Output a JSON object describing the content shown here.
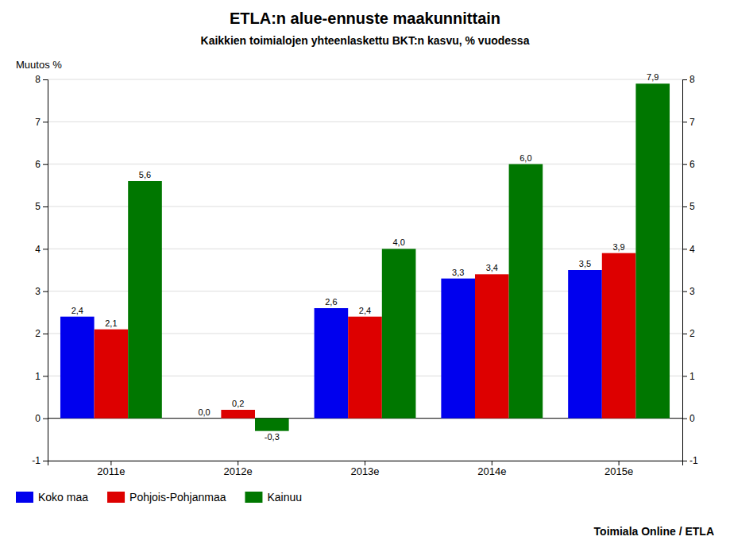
{
  "chart_data": {
    "type": "bar",
    "title": "ETLA:n alue-ennuste maakunnittain",
    "subtitle": "Kaikkien toimialojen yhteenlaskettu BKT:n kasvu, % vuodessa",
    "ylabel": "Muutos %",
    "categories": [
      "2011e",
      "2012e",
      "2013e",
      "2014e",
      "2015e"
    ],
    "series": [
      {
        "name": "Koko maa",
        "color": "#0000ee",
        "values": [
          2.4,
          0.0,
          2.6,
          3.3,
          3.5
        ],
        "value_labels": [
          "2,4",
          "0,0",
          "2,6",
          "3,3",
          "3,5"
        ]
      },
      {
        "name": "Pohjois-Pohjanmaa",
        "color": "#dd0000",
        "values": [
          2.1,
          0.2,
          2.4,
          3.4,
          3.9
        ],
        "value_labels": [
          "2,1",
          "0,2",
          "2,4",
          "3,4",
          "3,9"
        ]
      },
      {
        "name": "Kainuu",
        "color": "#007700",
        "values": [
          5.6,
          -0.3,
          4.0,
          6.0,
          7.9
        ],
        "value_labels": [
          "5,6",
          "-0,3",
          "4,0",
          "6,0",
          "7,9"
        ]
      }
    ],
    "ylim": [
      -1,
      8
    ],
    "yticks": [
      -1,
      0,
      1,
      2,
      3,
      4,
      5,
      6,
      7,
      8
    ],
    "y2lim": [
      -1,
      8
    ],
    "y2ticks": [
      -1,
      0,
      1,
      2,
      3,
      4,
      5,
      6,
      7,
      8
    ],
    "grid": true,
    "data_labels": true,
    "legend": "lower left",
    "annotations": [
      "Toimiala Online / ETLA"
    ]
  }
}
